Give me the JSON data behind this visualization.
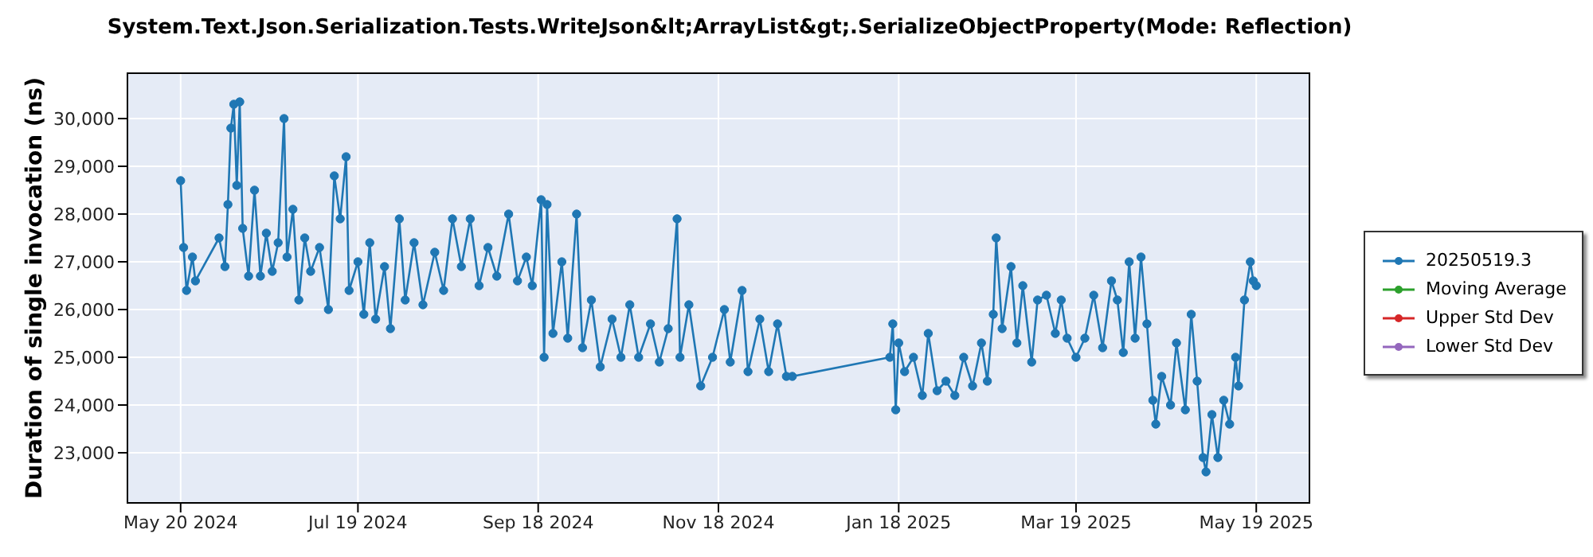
{
  "chart_data": {
    "type": "line",
    "title": "System.Text.Json.Serialization.Tests.WriteJson&lt;ArrayList&gt;.SerializeObjectProperty(Mode: Reflection)",
    "ylabel": "Duration of single invocation (ns)",
    "xlim": [
      "2024-05-02",
      "2025-06-06"
    ],
    "xticks": [
      {
        "value": "2024-05-20",
        "label": "May 20 2024"
      },
      {
        "value": "2024-07-19",
        "label": "Jul 19 2024"
      },
      {
        "value": "2024-09-18",
        "label": "Sep 18 2024"
      },
      {
        "value": "2024-11-18",
        "label": "Nov 18 2024"
      },
      {
        "value": "2025-01-18",
        "label": "Jan 18 2025"
      },
      {
        "value": "2025-03-19",
        "label": "Mar 19 2025"
      },
      {
        "value": "2025-05-19",
        "label": "May 19 2025"
      }
    ],
    "ylim": [
      21950,
      30950
    ],
    "yticks": [
      {
        "value": 23000,
        "label": "23,000"
      },
      {
        "value": 24000,
        "label": "24,000"
      },
      {
        "value": 25000,
        "label": "25,000"
      },
      {
        "value": 26000,
        "label": "26,000"
      },
      {
        "value": 27000,
        "label": "27,000"
      },
      {
        "value": 28000,
        "label": "28,000"
      },
      {
        "value": 29000,
        "label": "29,000"
      },
      {
        "value": 30000,
        "label": "30,000"
      }
    ],
    "grid": true,
    "legend": "right",
    "marker": "circle",
    "line_style": "solid",
    "series": [
      {
        "name": "20250519.3",
        "color": "#1f77b4",
        "x": [
          "2024-05-20",
          "2024-05-21",
          "2024-05-22",
          "2024-05-24",
          "2024-05-25",
          "2024-06-02",
          "2024-06-04",
          "2024-06-05",
          "2024-06-06",
          "2024-06-07",
          "2024-06-08",
          "2024-06-09",
          "2024-06-10",
          "2024-06-12",
          "2024-06-14",
          "2024-06-16",
          "2024-06-18",
          "2024-06-20",
          "2024-06-22",
          "2024-06-24",
          "2024-06-25",
          "2024-06-27",
          "2024-06-29",
          "2024-07-01",
          "2024-07-03",
          "2024-07-06",
          "2024-07-09",
          "2024-07-11",
          "2024-07-13",
          "2024-07-15",
          "2024-07-16",
          "2024-07-19",
          "2024-07-21",
          "2024-07-23",
          "2024-07-25",
          "2024-07-28",
          "2024-07-30",
          "2024-08-02",
          "2024-08-04",
          "2024-08-07",
          "2024-08-10",
          "2024-08-14",
          "2024-08-17",
          "2024-08-20",
          "2024-08-23",
          "2024-08-26",
          "2024-08-29",
          "2024-09-01",
          "2024-09-04",
          "2024-09-08",
          "2024-09-11",
          "2024-09-14",
          "2024-09-16",
          "2024-09-19",
          "2024-09-20",
          "2024-09-21",
          "2024-09-23",
          "2024-09-26",
          "2024-09-28",
          "2024-10-01",
          "2024-10-03",
          "2024-10-06",
          "2024-10-09",
          "2024-10-13",
          "2024-10-16",
          "2024-10-19",
          "2024-10-22",
          "2024-10-26",
          "2024-10-29",
          "2024-11-01",
          "2024-11-04",
          "2024-11-05",
          "2024-11-08",
          "2024-11-12",
          "2024-11-16",
          "2024-11-20",
          "2024-11-22",
          "2024-11-26",
          "2024-11-28",
          "2024-12-02",
          "2024-12-05",
          "2024-12-08",
          "2024-12-11",
          "2024-12-13",
          "2025-01-15",
          "2025-01-16",
          "2025-01-17",
          "2025-01-18",
          "2025-01-20",
          "2025-01-23",
          "2025-01-26",
          "2025-01-28",
          "2025-01-31",
          "2025-02-03",
          "2025-02-06",
          "2025-02-09",
          "2025-02-12",
          "2025-02-15",
          "2025-02-17",
          "2025-02-19",
          "2025-02-20",
          "2025-02-22",
          "2025-02-25",
          "2025-02-27",
          "2025-03-01",
          "2025-03-04",
          "2025-03-06",
          "2025-03-09",
          "2025-03-12",
          "2025-03-14",
          "2025-03-16",
          "2025-03-19",
          "2025-03-22",
          "2025-03-25",
          "2025-03-28",
          "2025-03-31",
          "2025-04-02",
          "2025-04-04",
          "2025-04-06",
          "2025-04-08",
          "2025-04-10",
          "2025-04-12",
          "2025-04-14",
          "2025-04-15",
          "2025-04-17",
          "2025-04-20",
          "2025-04-22",
          "2025-04-25",
          "2025-04-27",
          "2025-04-29",
          "2025-05-01",
          "2025-05-02",
          "2025-05-04",
          "2025-05-06",
          "2025-05-08",
          "2025-05-10",
          "2025-05-12",
          "2025-05-13",
          "2025-05-15",
          "2025-05-17",
          "2025-05-18",
          "2025-05-19"
        ],
        "values": [
          28700,
          27300,
          26400,
          27100,
          26600,
          27500,
          26900,
          28200,
          29800,
          30300,
          28600,
          30350,
          27700,
          26700,
          28500,
          26700,
          27600,
          26800,
          27400,
          30000,
          27100,
          28100,
          26200,
          27500,
          26800,
          27300,
          26000,
          28800,
          27900,
          29200,
          26400,
          27000,
          25900,
          27400,
          25800,
          26900,
          25600,
          27900,
          26200,
          27400,
          26100,
          27200,
          26400,
          27900,
          26900,
          27900,
          26500,
          27300,
          26700,
          28000,
          26600,
          27100,
          26500,
          28300,
          25000,
          28200,
          25500,
          27000,
          25400,
          28000,
          25200,
          26200,
          24800,
          25800,
          25000,
          26100,
          25000,
          25700,
          24900,
          25600,
          27900,
          25000,
          26100,
          24400,
          25000,
          26000,
          24900,
          26400,
          24700,
          25800,
          24700,
          25700,
          24600,
          24600,
          25000,
          25700,
          23900,
          25300,
          24700,
          25000,
          24200,
          25500,
          24300,
          24500,
          24200,
          25000,
          24400,
          25300,
          24500,
          25900,
          27500,
          25600,
          26900,
          25300,
          26500,
          24900,
          26200,
          26300,
          25500,
          26200,
          25400,
          25000,
          25400,
          26300,
          25200,
          26600,
          26200,
          25100,
          27000,
          25400,
          27100,
          25700,
          24100,
          23600,
          24600,
          24000,
          25300,
          23900,
          25900,
          24500,
          22900,
          22600,
          23800,
          22900,
          24100,
          23600,
          25000,
          24400,
          26200,
          27000,
          26600,
          26500
        ]
      },
      {
        "name": "Moving Average",
        "color": "#2ca02c"
      },
      {
        "name": "Upper Std Dev",
        "color": "#d62728"
      },
      {
        "name": "Lower Std Dev",
        "color": "#9467bd"
      }
    ]
  }
}
